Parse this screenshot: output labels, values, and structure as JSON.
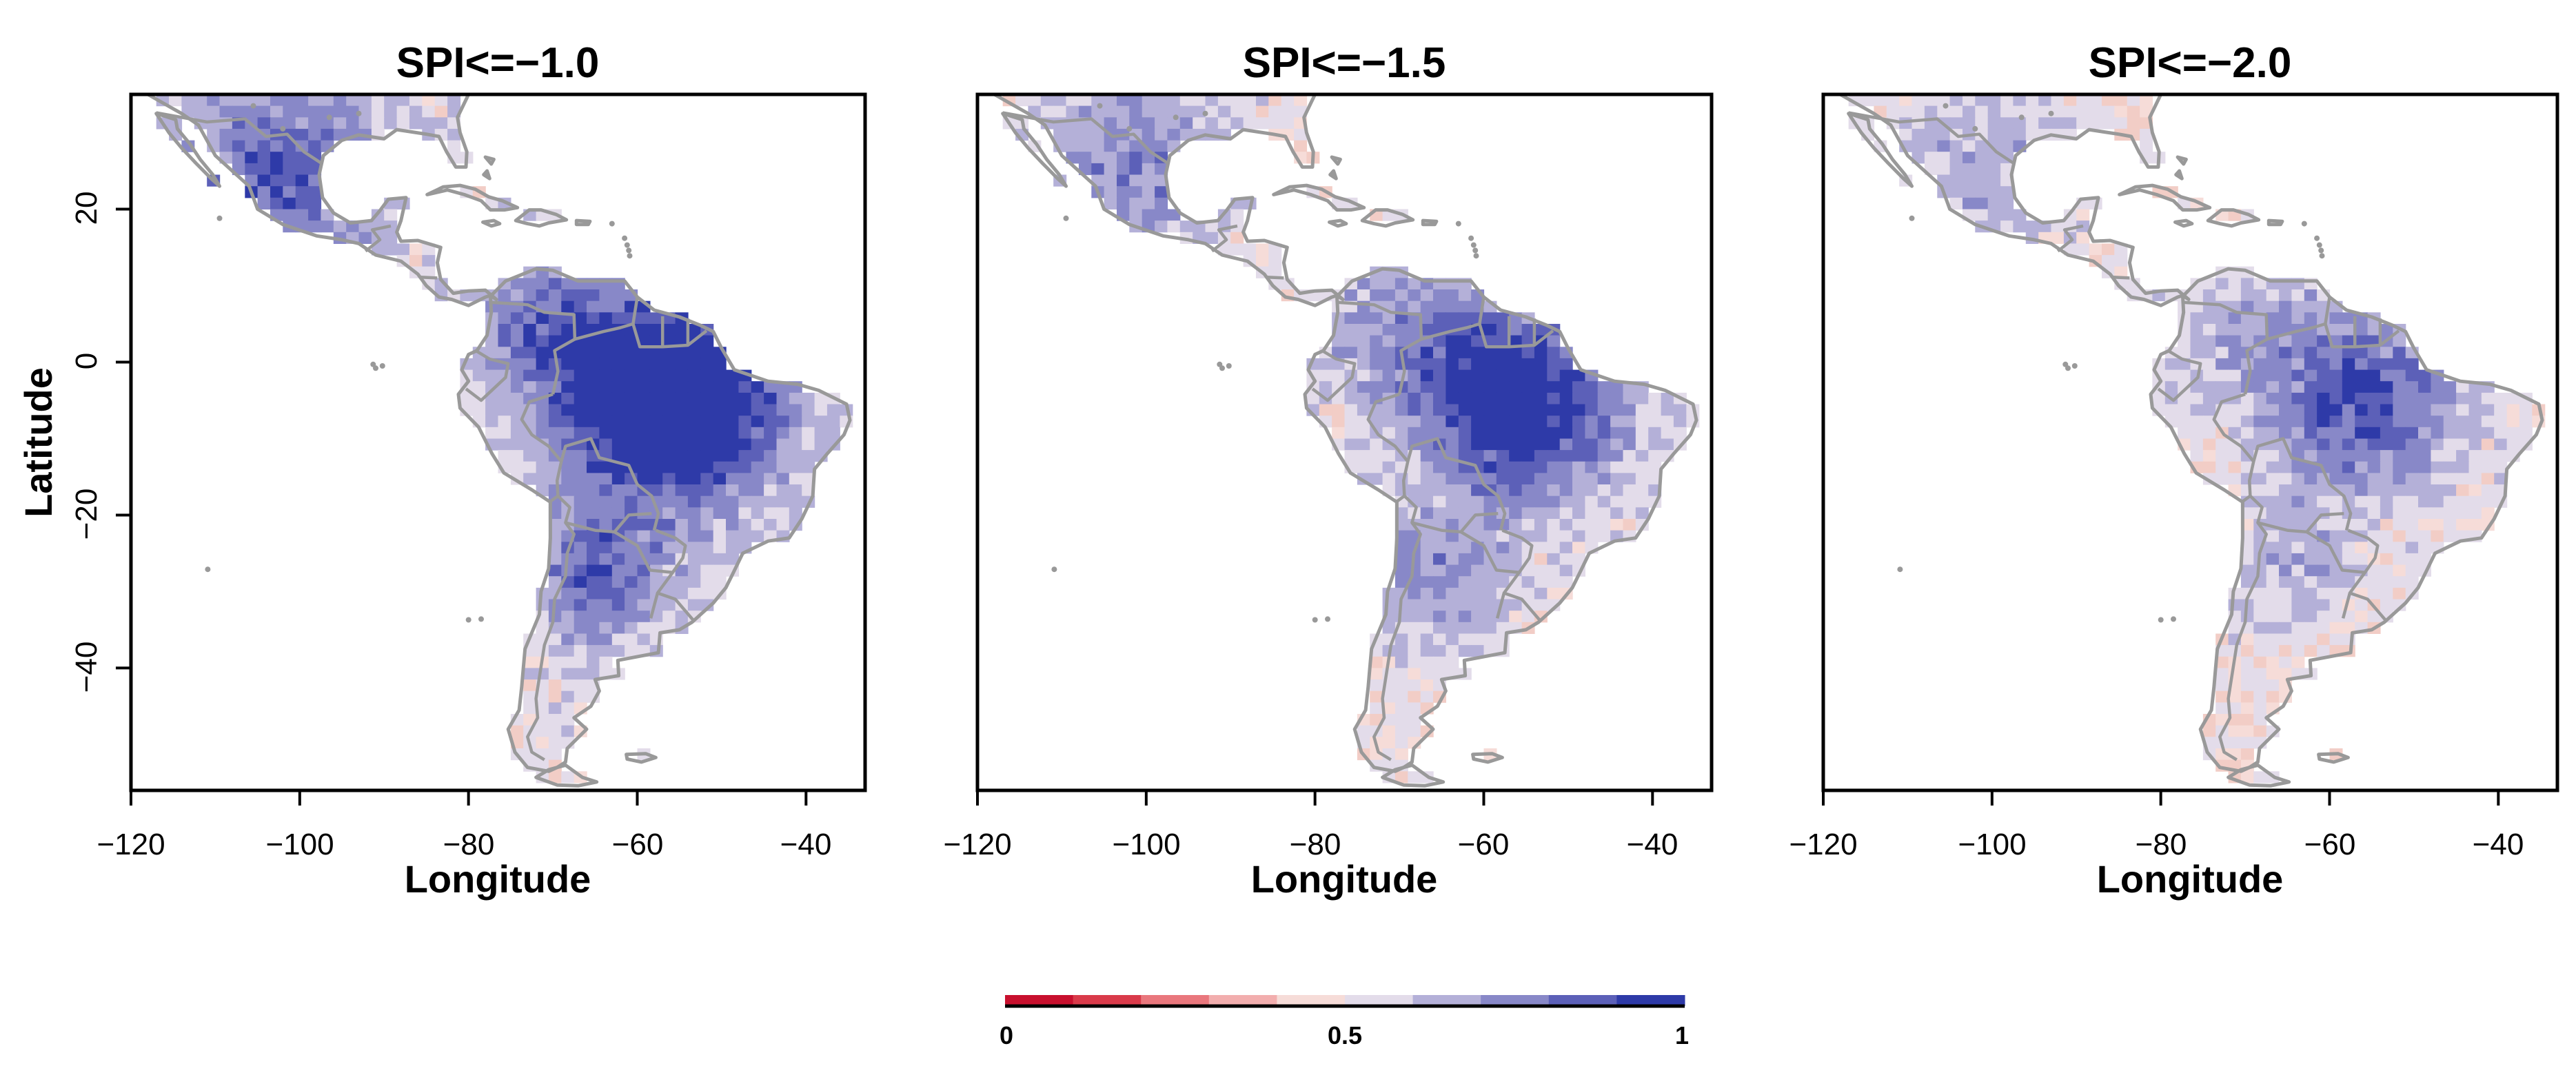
{
  "figure": {
    "panels": [
      {
        "title": "SPI<=−1.0",
        "intensity": 0.72
      },
      {
        "title": "SPI<=−1.5",
        "intensity": 0.55
      },
      {
        "title": "SPI<=−2.0",
        "intensity": 0.42
      }
    ],
    "x_axis": {
      "label": "Longitude",
      "ticks": [
        -120,
        -100,
        -80,
        -60,
        -40
      ],
      "tick_labels": [
        "−120",
        "−100",
        "−80",
        "−60",
        "−40"
      ],
      "range": [
        -120,
        -33
      ]
    },
    "y_axis": {
      "label": "Latitude",
      "ticks": [
        20,
        0,
        -20,
        -40
      ],
      "tick_labels": [
        "20",
        "0",
        "−20",
        "−40"
      ],
      "range": [
        -56,
        35
      ]
    },
    "colorbar": {
      "ticks": [
        0,
        0.5,
        1
      ],
      "tick_labels": [
        "0",
        "0.5",
        "1"
      ],
      "colors": [
        "#c8102e",
        "#d93a4a",
        "#e9777d",
        "#f2aeae",
        "#f6dcd8",
        "#e3dcea",
        "#b4b0d8",
        "#8888c8",
        "#5c60b8",
        "#2e3aa8"
      ]
    },
    "colors": {
      "coast": "#999999",
      "frame": "#000000"
    }
  }
}
